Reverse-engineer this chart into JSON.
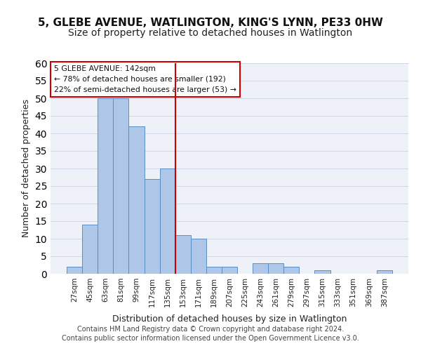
{
  "title": "5, GLEBE AVENUE, WATLINGTON, KING'S LYNN, PE33 0HW",
  "subtitle": "Size of property relative to detached houses in Watlington",
  "xlabel": "Distribution of detached houses by size in Watlington",
  "ylabel": "Number of detached properties",
  "bar_labels": [
    "27sqm",
    "45sqm",
    "63sqm",
    "81sqm",
    "99sqm",
    "117sqm",
    "135sqm",
    "153sqm",
    "171sqm",
    "189sqm",
    "207sqm",
    "225sqm",
    "243sqm",
    "261sqm",
    "279sqm",
    "297sqm",
    "315sqm",
    "333sqm",
    "351sqm",
    "369sqm",
    "387sqm"
  ],
  "bar_values": [
    2,
    14,
    50,
    50,
    42,
    27,
    30,
    11,
    10,
    2,
    2,
    0,
    3,
    3,
    2,
    0,
    1,
    0,
    0,
    0,
    1
  ],
  "bar_color": "#aec6e8",
  "bar_edge_color": "#5a8fc2",
  "vline_x": 6.5,
  "vline_color": "#cc0000",
  "annotation_text": "5 GLEBE AVENUE: 142sqm\n← 78% of detached houses are smaller (192)\n22% of semi-detached houses are larger (53) →",
  "annotation_box_color": "#ffffff",
  "annotation_box_edge": "#cc0000",
  "ylim": [
    0,
    60
  ],
  "yticks": [
    0,
    5,
    10,
    15,
    20,
    25,
    30,
    35,
    40,
    45,
    50,
    55,
    60
  ],
  "grid_color": "#d0d8e8",
  "bg_color": "#eef2f8",
  "footer1": "Contains HM Land Registry data © Crown copyright and database right 2024.",
  "footer2": "Contains public sector information licensed under the Open Government Licence v3.0.",
  "title_fontsize": 11,
  "subtitle_fontsize": 10,
  "xlabel_fontsize": 9,
  "ylabel_fontsize": 9,
  "tick_fontsize": 7.5,
  "footer_fontsize": 7
}
